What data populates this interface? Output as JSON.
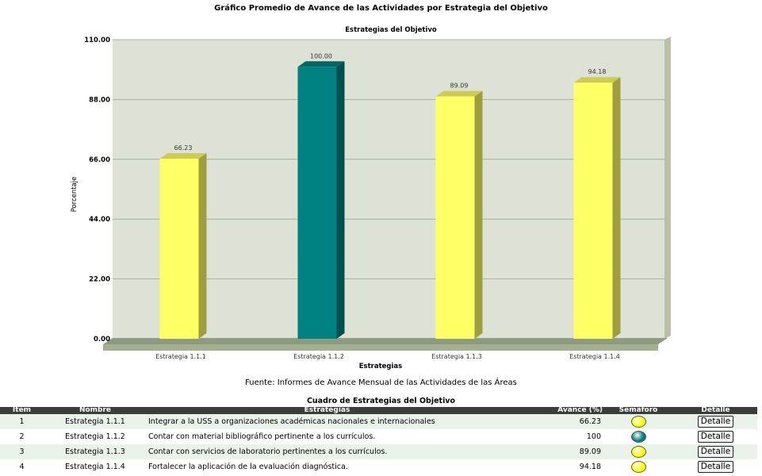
{
  "page": {
    "title": "Gráfico Promedio de Avance de las Actividades por Estrategia del Objetivo",
    "source": "Fuente: Informes de Avance Mensual de las Actividades de las Áreas",
    "table_title": "Cuadro de Estrategias del Objetivo"
  },
  "chart_data": {
    "type": "bar",
    "title": "Estrategias del Objetivo",
    "xlabel": "Estrategias",
    "ylabel": "Porcentaje",
    "categories": [
      "Estrategia 1.1.1",
      "Estrategia 1.1.2",
      "Estrategia 1.1.3",
      "Estrategia 1.1.4"
    ],
    "values": [
      66.23,
      100.0,
      89.09,
      94.18
    ],
    "value_labels": [
      "66.23",
      "100.00",
      "89.09",
      "94.18"
    ],
    "bar_colors": [
      "#ffff66",
      "#008080",
      "#ffff66",
      "#ffff66"
    ],
    "ylim": [
      0,
      110
    ],
    "yticks": [
      "0.00",
      "22.00",
      "44.00",
      "66.00",
      "88.00",
      "110.00"
    ],
    "grid": true,
    "plot_background": "#dde3d4"
  },
  "table": {
    "headers": [
      "Item",
      "Nombre",
      "Estrategias",
      "Avance (%)",
      "Semaforo",
      "Detalle"
    ],
    "rows": [
      {
        "item": "1",
        "nombre": "Estrategia 1.1.1",
        "estrategia": "Integrar a la USS a organizaciones académicas nacionales e internacionales",
        "avance": "66.23",
        "semaforo_color": "#ffff00",
        "detalle": "Detalle"
      },
      {
        "item": "2",
        "nombre": "Estrategia 1.1.2",
        "estrategia": "Contar con material bibliográfico pertinente a los currículos.",
        "avance": "100",
        "semaforo_color": "#008080",
        "detalle": "Detalle"
      },
      {
        "item": "3",
        "nombre": "Estrategia 1.1.3",
        "estrategia": "Contar con servicios de laboratorio pertinentes a los currículos.",
        "avance": "89.09",
        "semaforo_color": "#ffff00",
        "detalle": "Detalle"
      },
      {
        "item": "4",
        "nombre": "Estrategia 1.1.4",
        "estrategia": "Fortalecer la aplicación de la evaluación diagnóstica.",
        "avance": "94.18",
        "semaforo_color": "#ffff00",
        "detalle": "Detalle"
      }
    ]
  }
}
